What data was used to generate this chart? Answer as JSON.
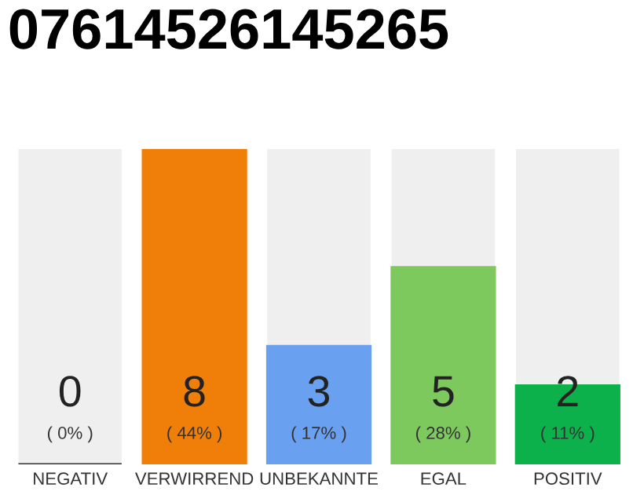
{
  "chart_data": {
    "type": "bar",
    "title": "07614526145265",
    "categories": [
      "NEGATIV",
      "VERWIRREND",
      "UNBEKANNTE",
      "EGAL",
      "POSITIV"
    ],
    "values": [
      0,
      8,
      3,
      5,
      2
    ],
    "colors": [
      "#333333",
      "#f07f09",
      "#6aa0f0",
      "#7dc95e",
      "#0db14b"
    ],
    "tick_labels": "x",
    "grid": false,
    "legend": false,
    "value_labels": [
      "0",
      "8",
      "3",
      "5",
      "2"
    ],
    "annotations": [
      "( 0% )",
      "( 44% )",
      "( 17% )",
      "( 28% )",
      "( 11% )"
    ]
  }
}
